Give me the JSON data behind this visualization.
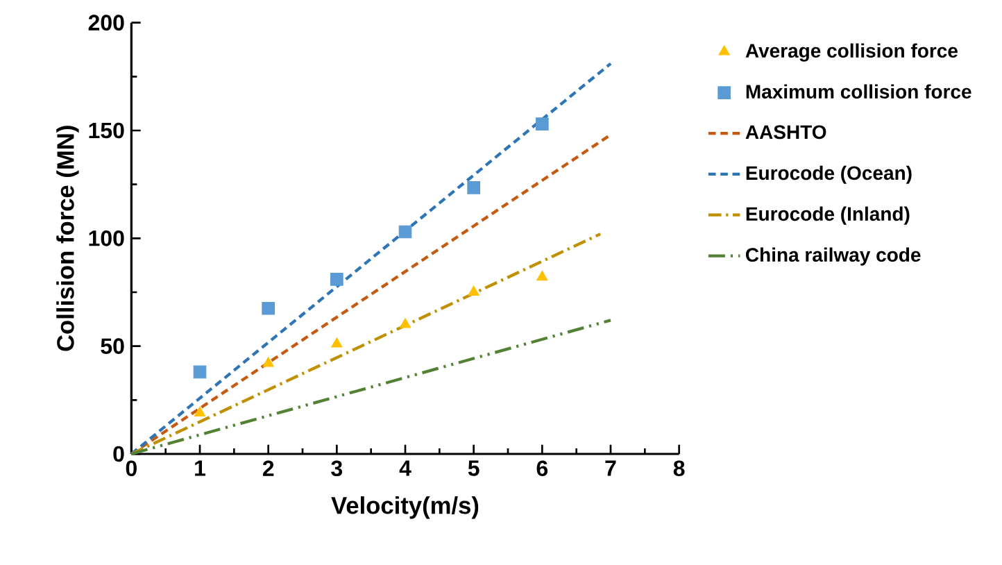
{
  "chart_data": {
    "type": "scatter",
    "xlabel": "Velocity(m/s)",
    "ylabel": "Collision force  (MN)",
    "xlim": [
      0,
      8
    ],
    "ylim": [
      0,
      200
    ],
    "xticks": [
      0,
      1,
      2,
      3,
      4,
      5,
      6,
      7,
      8
    ],
    "yticks": [
      0,
      50,
      100,
      150,
      200
    ],
    "legend": "right",
    "grid": false,
    "series": [
      {
        "name": "Average collision force",
        "marker": "triangle",
        "color": "#ffc000",
        "x": [
          1,
          2,
          3,
          4,
          5,
          6
        ],
        "values": [
          19,
          42,
          51,
          60,
          75,
          82
        ]
      },
      {
        "name": "Maximum collision force",
        "marker": "square",
        "color": "#5b9bd5",
        "x": [
          1,
          2,
          3,
          4,
          5,
          6
        ],
        "values": [
          38,
          67.5,
          81,
          103,
          123.5,
          153
        ]
      },
      {
        "name": "AASHTO",
        "type": "line",
        "line_style": "dashed",
        "color": "#c55a11",
        "x": [
          0,
          7
        ],
        "values": [
          0,
          148
        ]
      },
      {
        "name": "Eurocode (Ocean)",
        "type": "line",
        "line_style": "dashed",
        "color": "#2e75b6",
        "x": [
          0,
          7
        ],
        "values": [
          0,
          181
        ]
      },
      {
        "name": "Eurocode (Inland)",
        "type": "line",
        "line_style": "dashdot",
        "color": "#bf9000",
        "x": [
          0,
          6.85
        ],
        "values": [
          0,
          102
        ]
      },
      {
        "name": "China railway code",
        "type": "line",
        "line_style": "dashdotdot",
        "color": "#548235",
        "x": [
          0,
          7
        ],
        "values": [
          0,
          62
        ]
      }
    ]
  }
}
